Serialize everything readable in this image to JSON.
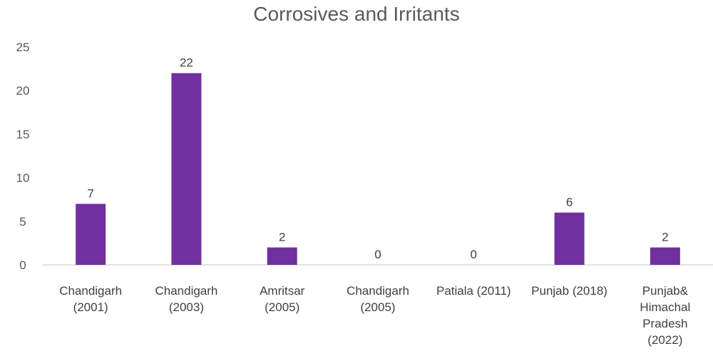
{
  "chart_data": {
    "type": "bar",
    "title": "Corrosives and Irritants",
    "categories": [
      [
        "Chandigarh",
        "(2001)"
      ],
      [
        "Chandigarh",
        "(2003)"
      ],
      [
        "Amritsar",
        "(2005)"
      ],
      [
        "Chandigarh",
        "(2005)"
      ],
      [
        "Patiala (2011)"
      ],
      [
        "Punjab (2018)"
      ],
      [
        "Punjab&",
        "Himachal",
        "Pradesh",
        "(2022)"
      ]
    ],
    "values": [
      7,
      22,
      2,
      0,
      0,
      6,
      2
    ],
    "data_labels": [
      "7",
      "22",
      "2",
      "0",
      "0",
      "6",
      "2"
    ],
    "ylim": [
      0,
      25
    ],
    "yticks": [
      0,
      5,
      10,
      15,
      20,
      25
    ],
    "ytick_labels": [
      "0",
      "5",
      "10",
      "15",
      "20",
      "25"
    ],
    "xlabel": "",
    "ylabel": "",
    "grid": false,
    "legend": "none",
    "colors": {
      "bar": "#7030A0",
      "axis": "#D9D9D9",
      "text": "#404040",
      "title": "#595959"
    }
  }
}
